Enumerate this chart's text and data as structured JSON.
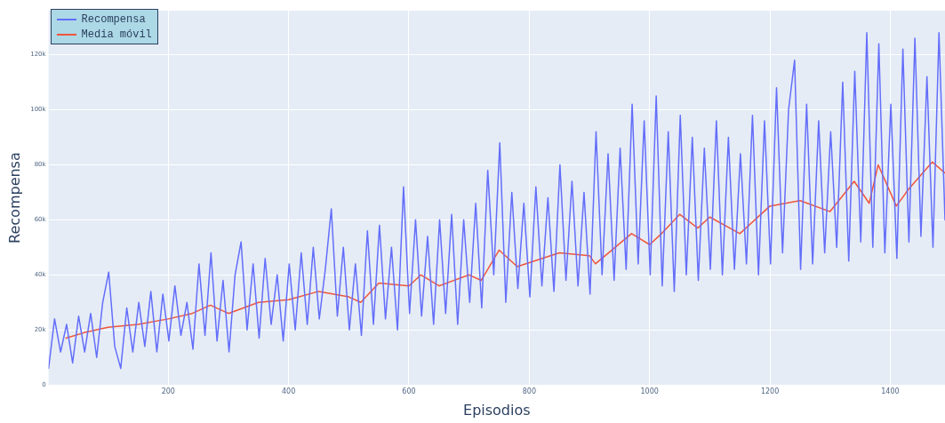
{
  "chart_data": {
    "type": "line",
    "xlabel": "Episodios",
    "ylabel": "Recompensa",
    "xlim": [
      1,
      1491
    ],
    "ylim": [
      0,
      136000
    ],
    "xticks": [
      200,
      400,
      600,
      800,
      1000,
      1200,
      1400
    ],
    "yticks": [
      0,
      {
        "value": 20000,
        "label": "20k"
      },
      {
        "value": 40000,
        "label": "40k"
      },
      {
        "value": 60000,
        "label": "60k"
      },
      {
        "value": 80000,
        "label": "80k"
      },
      {
        "value": 100000,
        "label": "100k"
      },
      {
        "value": 120000,
        "label": "120k"
      }
    ],
    "grid": true,
    "legend": "top left",
    "marker": "none",
    "line_style": "solid",
    "series": [
      {
        "name": "Recompensa",
        "color": "#636efa",
        "x": [
          1,
          11,
          21,
          31,
          41,
          51,
          61,
          71,
          81,
          91,
          101,
          111,
          121,
          131,
          141,
          151,
          161,
          171,
          181,
          191,
          201,
          211,
          221,
          231,
          241,
          251,
          261,
          271,
          281,
          291,
          301,
          311,
          321,
          331,
          341,
          351,
          361,
          371,
          381,
          391,
          401,
          411,
          421,
          431,
          441,
          451,
          461,
          471,
          481,
          491,
          501,
          511,
          521,
          531,
          541,
          551,
          561,
          571,
          581,
          591,
          601,
          611,
          621,
          631,
          641,
          651,
          661,
          671,
          681,
          691,
          701,
          711,
          721,
          731,
          741,
          751,
          761,
          771,
          781,
          791,
          801,
          811,
          821,
          831,
          841,
          851,
          861,
          871,
          881,
          891,
          901,
          911,
          921,
          931,
          941,
          951,
          961,
          971,
          981,
          991,
          1001,
          1011,
          1021,
          1031,
          1041,
          1051,
          1061,
          1071,
          1081,
          1091,
          1101,
          1111,
          1121,
          1131,
          1141,
          1151,
          1161,
          1171,
          1181,
          1191,
          1201,
          1211,
          1221,
          1231,
          1241,
          1251,
          1261,
          1271,
          1281,
          1291,
          1301,
          1311,
          1321,
          1331,
          1341,
          1351,
          1361,
          1371,
          1381,
          1391,
          1401,
          1411,
          1421,
          1431,
          1441,
          1451,
          1461,
          1471,
          1481,
          1491
        ],
        "values": [
          6000,
          24000,
          12000,
          22000,
          8000,
          25000,
          12000,
          26000,
          10000,
          30000,
          41000,
          14000,
          6000,
          28000,
          12000,
          30000,
          14000,
          34000,
          12000,
          33000,
          16000,
          36000,
          18000,
          30000,
          13000,
          44000,
          18000,
          48000,
          16000,
          38000,
          12000,
          40000,
          52000,
          20000,
          44000,
          17000,
          46000,
          22000,
          40000,
          16000,
          44000,
          20000,
          48000,
          22000,
          50000,
          24000,
          42000,
          64000,
          25000,
          50000,
          20000,
          44000,
          18000,
          56000,
          22000,
          58000,
          24000,
          50000,
          20000,
          72000,
          26000,
          60000,
          25000,
          54000,
          22000,
          60000,
          26000,
          62000,
          22000,
          60000,
          30000,
          66000,
          28000,
          78000,
          40000,
          88000,
          30000,
          70000,
          35000,
          66000,
          32000,
          72000,
          36000,
          68000,
          34000,
          80000,
          38000,
          74000,
          36000,
          70000,
          33000,
          92000,
          40000,
          84000,
          38000,
          86000,
          42000,
          102000,
          44000,
          96000,
          40000,
          105000,
          36000,
          92000,
          34000,
          98000,
          40000,
          90000,
          38000,
          86000,
          42000,
          96000,
          40000,
          90000,
          42000,
          84000,
          44000,
          98000,
          40000,
          96000,
          44000,
          108000,
          48000,
          100000,
          118000,
          42000,
          102000,
          44000,
          96000,
          48000,
          92000,
          50000,
          110000,
          45000,
          114000,
          52000,
          128000,
          50000,
          124000,
          48000,
          102000,
          46000,
          122000,
          52000,
          126000,
          54000,
          112000,
          50000,
          128000,
          60000
        ]
      },
      {
        "name": "Media móvil",
        "color": "#ef553b",
        "x": [
          30,
          60,
          100,
          150,
          200,
          240,
          270,
          300,
          350,
          400,
          450,
          500,
          520,
          550,
          600,
          620,
          650,
          700,
          720,
          750,
          780,
          850,
          900,
          910,
          970,
          1000,
          1020,
          1050,
          1080,
          1100,
          1150,
          1200,
          1250,
          1300,
          1340,
          1365,
          1380,
          1410,
          1430,
          1470,
          1491
        ],
        "values": [
          17000,
          19000,
          21000,
          22000,
          24000,
          26000,
          29000,
          26000,
          30000,
          31000,
          34000,
          32000,
          30000,
          37000,
          36000,
          40000,
          36000,
          40000,
          38000,
          49000,
          43000,
          48000,
          47000,
          44000,
          55000,
          51000,
          55000,
          62000,
          57000,
          61000,
          55000,
          65000,
          67000,
          63000,
          74000,
          66000,
          80000,
          65000,
          71000,
          81000,
          77000
        ]
      }
    ]
  }
}
